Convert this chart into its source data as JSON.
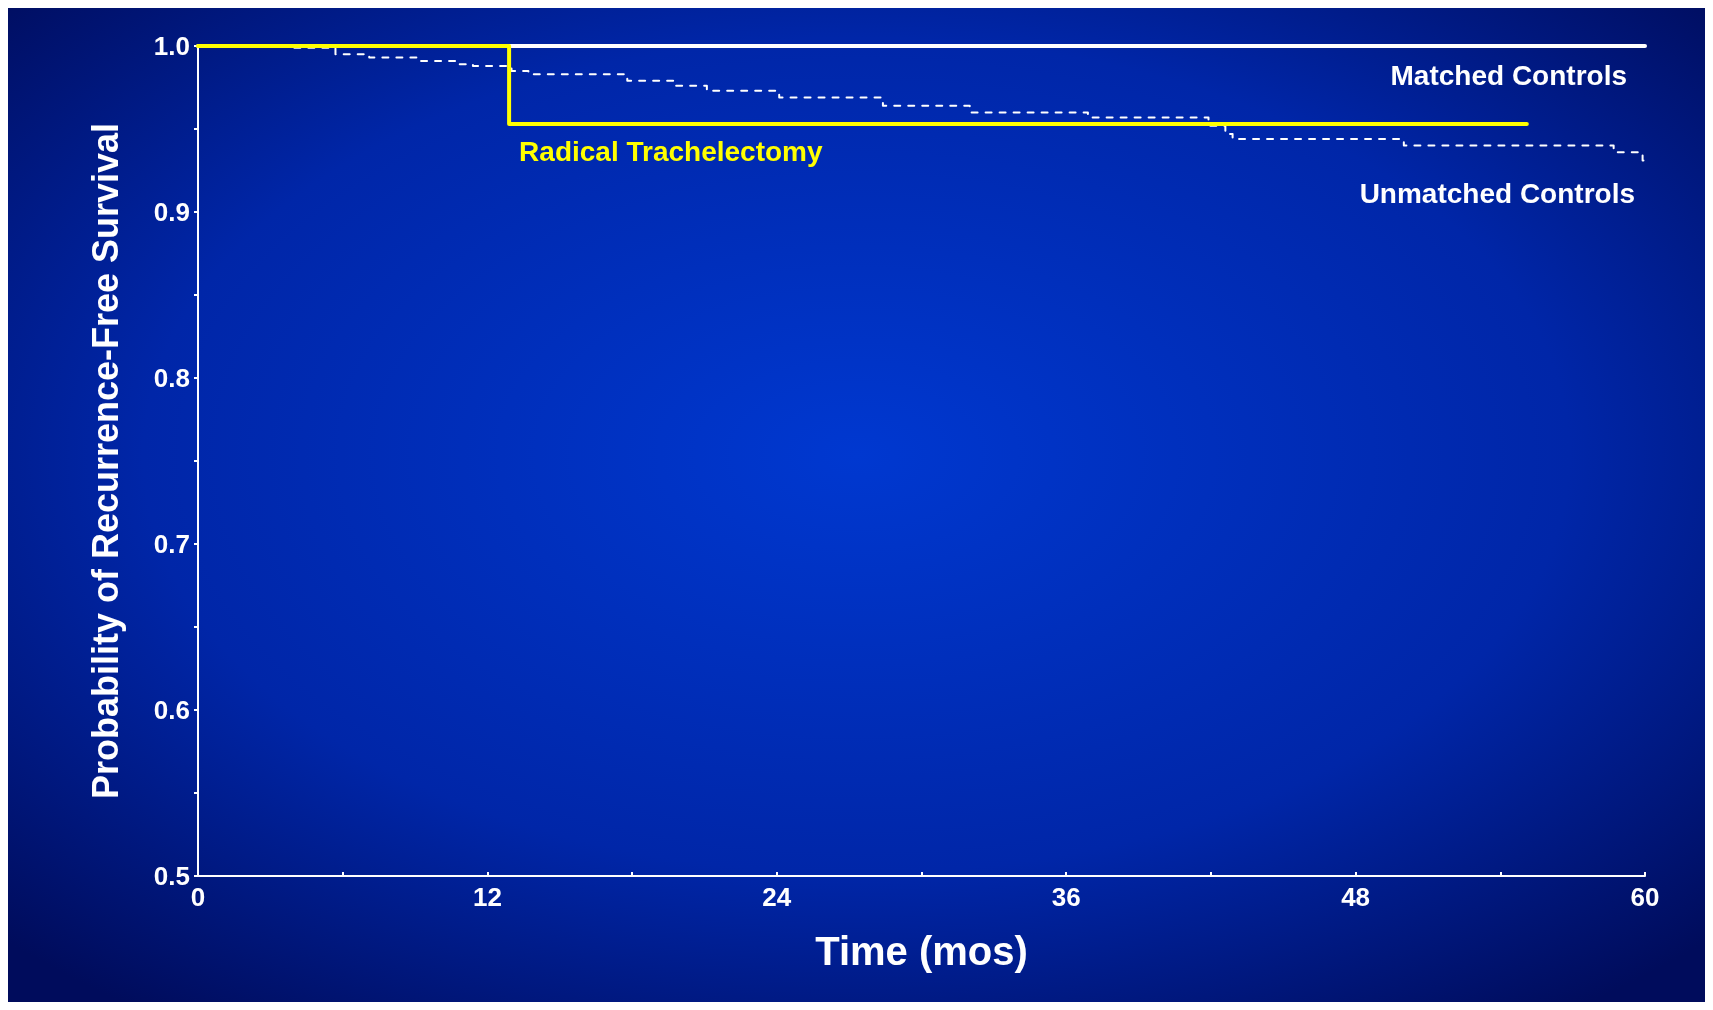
{
  "chart_data": {
    "type": "step",
    "xlabel": "Time (mos)",
    "ylabel": "Probability of Recurrence-Free Survival",
    "xlim": [
      0,
      60
    ],
    "ylim": [
      0.5,
      1.0
    ],
    "xticks": [
      0,
      {
        "value": 6,
        "label": null
      },
      12,
      {
        "value": 18,
        "label": null
      },
      24,
      {
        "value": 30,
        "label": null
      },
      36,
      {
        "value": 42,
        "label": null
      },
      48,
      {
        "value": 54,
        "label": null
      },
      60
    ],
    "yticks": [
      0.5,
      {
        "value": 0.55,
        "label": null
      },
      0.6,
      {
        "value": 0.65,
        "label": null
      },
      0.7,
      {
        "value": 0.75,
        "label": null
      },
      0.8,
      {
        "value": 0.85,
        "label": null
      },
      0.9,
      {
        "value": 0.95,
        "label": null
      },
      {
        "value": 1.0,
        "label": "1.0"
      }
    ],
    "grid": false,
    "legend": false,
    "marker": "none",
    "series": [
      {
        "name": "Matched Controls",
        "color": "#ffffff",
        "line_style": "solid",
        "x": [
          0,
          60
        ],
        "values": [
          1.0,
          1.0
        ]
      },
      {
        "name": "Unmatched Controls",
        "color": "#ffffff",
        "line_style": "dashed",
        "x": [
          0,
          3.7,
          5.7,
          7.1,
          9.2,
          10.7,
          11.4,
          13.0,
          13.7,
          17.8,
          19.8,
          21.1,
          24.1,
          28.4,
          32.0,
          36.9,
          41.9,
          42.6,
          42.9,
          50.0,
          58.7,
          59.9,
          60
        ],
        "values": [
          1.0,
          0.999,
          0.995,
          0.993,
          0.991,
          0.989,
          0.988,
          0.985,
          0.983,
          0.979,
          0.976,
          0.973,
          0.969,
          0.964,
          0.96,
          0.957,
          0.952,
          0.947,
          0.944,
          0.94,
          0.936,
          0.931,
          0.931
        ]
      },
      {
        "name": "Radical Trachelectomy",
        "color": "#ffff00",
        "line_style": "solid",
        "x": [
          0,
          12.9,
          55.1
        ],
        "values": [
          1.0,
          0.953,
          0.953
        ]
      }
    ]
  }
}
